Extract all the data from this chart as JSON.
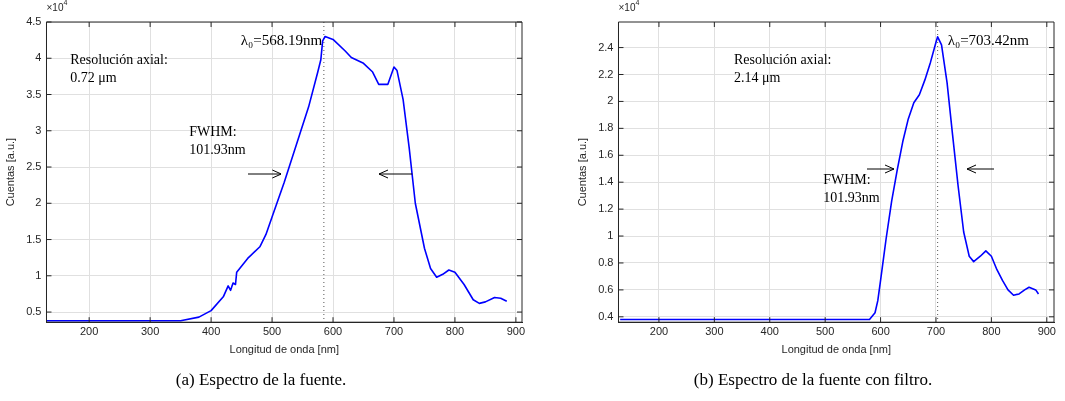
{
  "chart_data": [
    {
      "type": "line",
      "title": "(a) Espectro de la fuente.",
      "xlabel": "Longitud de onda [nm]",
      "ylabel": "Cuentas [a.u.]",
      "xlim": [
        130,
        910
      ],
      "xticks": [
        200,
        300,
        400,
        500,
        600,
        700,
        800,
        900
      ],
      "ylim": [
        0.36,
        4.5
      ],
      "yticks": [
        0.5,
        1,
        1.5,
        2,
        2.5,
        3,
        3.5,
        4,
        4.5
      ],
      "grid": true,
      "marker": "none",
      "line_style": "solid",
      "ref_lines": [
        {
          "axis": "x",
          "value": 585,
          "color": "#555555",
          "line_style": "dotted"
        }
      ],
      "annotations": [
        "×10$^{4}$",
        "Resolución axial:\n0.72 μm",
        "FWHM:\n101.93nm",
        {
          "text": "λ₀=568.19nm",
          "x": 587,
          "y": 4.3
        }
      ],
      "series": [
        {
          "color": "#0000ff",
          "x": [
            130,
            350,
            380,
            400,
            420,
            428,
            432,
            436,
            440,
            442,
            460,
            480,
            490,
            500,
            520,
            540,
            560,
            575,
            580,
            583,
            587,
            600,
            620,
            630,
            650,
            665,
            675,
            690,
            700,
            705,
            715,
            725,
            735,
            750,
            760,
            770,
            780,
            790,
            800,
            815,
            830,
            840,
            850,
            865,
            875,
            885
          ],
          "values": [
            0.38,
            0.38,
            0.43,
            0.52,
            0.71,
            0.86,
            0.8,
            0.9,
            0.88,
            1.05,
            1.24,
            1.4,
            1.57,
            1.81,
            2.29,
            2.81,
            3.33,
            3.81,
            3.98,
            4.24,
            4.3,
            4.26,
            4.1,
            4.01,
            3.93,
            3.81,
            3.64,
            3.64,
            3.88,
            3.83,
            3.43,
            2.76,
            2.0,
            1.38,
            1.1,
            0.98,
            1.02,
            1.08,
            1.05,
            0.88,
            0.67,
            0.62,
            0.64,
            0.7,
            0.69,
            0.65
          ]
        }
      ]
    },
    {
      "type": "line",
      "title": "(b) Espectro de la fuente con filtro.",
      "xlabel": "Longitud de onda [nm]",
      "ylabel": "Cuentas [a.u.]",
      "xlim": [
        127,
        913
      ],
      "xticks": [
        200,
        300,
        400,
        500,
        600,
        700,
        800,
        900
      ],
      "ylim": [
        0.36,
        2.59
      ],
      "yticks": [
        0.4,
        0.6,
        0.8,
        1,
        1.2,
        1.4,
        1.6,
        1.8,
        2,
        2.2,
        2.4
      ],
      "grid": true,
      "marker": "none",
      "line_style": "solid",
      "ref_lines": [
        {
          "axis": "x",
          "value": 703,
          "color": "#555555",
          "line_style": "dotted"
        }
      ],
      "annotations": [
        "×10$^{4}$",
        "Resolución axial:\n2.14 μm",
        "FWHM:\n101.93nm",
        {
          "text": "λ₀=703.42nm",
          "x": 703,
          "y": 2.48
        }
      ],
      "series": [
        {
          "color": "#0000ff",
          "x": [
            130,
            580,
            590,
            595,
            600,
            610,
            620,
            630,
            640,
            650,
            660,
            670,
            680,
            690,
            700,
            703,
            710,
            720,
            730,
            740,
            750,
            760,
            768,
            780,
            790,
            800,
            810,
            820,
            830,
            840,
            850,
            860,
            868,
            880,
            885
          ],
          "values": [
            0.38,
            0.38,
            0.43,
            0.52,
            0.67,
            0.98,
            1.26,
            1.49,
            1.7,
            1.87,
            1.99,
            2.05,
            2.16,
            2.29,
            2.44,
            2.48,
            2.42,
            2.14,
            1.75,
            1.37,
            1.03,
            0.85,
            0.81,
            0.85,
            0.89,
            0.85,
            0.75,
            0.67,
            0.6,
            0.56,
            0.57,
            0.6,
            0.62,
            0.6,
            0.57
          ]
        }
      ]
    }
  ]
}
